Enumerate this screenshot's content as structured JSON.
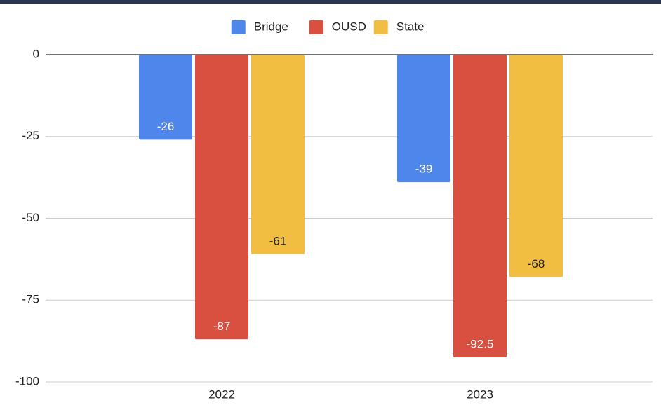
{
  "chart_data": {
    "type": "bar",
    "categories": [
      "2022",
      "2023"
    ],
    "series": [
      {
        "name": "Bridge",
        "color": "#4f86ec",
        "values": [
          -26,
          -39
        ]
      },
      {
        "name": "OUSD",
        "color": "#d95040",
        "values": [
          -87,
          -92.5
        ]
      },
      {
        "name": "State",
        "color": "#f2be42",
        "values": [
          -61,
          -68
        ]
      }
    ],
    "ylim": [
      -100,
      0
    ],
    "yticks": [
      0,
      -25,
      -50,
      -75,
      -100
    ],
    "grid": true,
    "legend": "top",
    "data_labels": true
  }
}
